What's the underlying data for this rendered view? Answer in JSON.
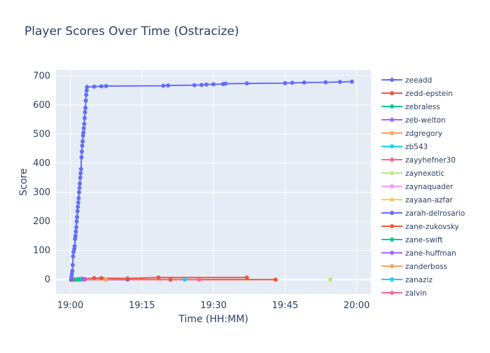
{
  "chart_data": {
    "type": "line",
    "title": "Player Scores Over Time (Ostracize)",
    "xlabel": "Time (HH:MM)",
    "ylabel": "Score",
    "x_ticks": [
      "19:00",
      "19:15",
      "19:30",
      "19:45",
      "20:00"
    ],
    "y_ticks": [
      0,
      100,
      200,
      300,
      400,
      500,
      600,
      700
    ],
    "xlim": [
      "19:00",
      "20:00"
    ],
    "ylim": [
      -50,
      720
    ],
    "grid": true,
    "legend_position": "right",
    "series": [
      {
        "name": "zeeadd",
        "color": "#636efa",
        "points": [
          [
            "19:00:10",
            0
          ],
          [
            "19:00:15",
            10
          ],
          [
            "19:00:20",
            20
          ],
          [
            "19:00:25",
            30
          ],
          [
            "19:00:30",
            50
          ],
          [
            "19:00:35",
            80
          ],
          [
            "19:00:40",
            95
          ],
          [
            "19:00:50",
            105
          ],
          [
            "19:00:55",
            115
          ],
          [
            "19:01:00",
            140
          ],
          [
            "19:01:05",
            150
          ],
          [
            "19:01:10",
            165
          ],
          [
            "19:01:15",
            180
          ],
          [
            "19:01:20",
            200
          ],
          [
            "19:01:25",
            215
          ],
          [
            "19:01:30",
            235
          ],
          [
            "19:01:35",
            250
          ],
          [
            "19:01:40",
            265
          ],
          [
            "19:01:45",
            280
          ],
          [
            "19:01:50",
            300
          ],
          [
            "19:01:55",
            315
          ],
          [
            "19:02:00",
            330
          ],
          [
            "19:02:05",
            350
          ],
          [
            "19:02:10",
            365
          ],
          [
            "19:02:15",
            380
          ],
          [
            "19:02:20",
            420
          ],
          [
            "19:02:25",
            440
          ],
          [
            "19:02:30",
            460
          ],
          [
            "19:02:35",
            475
          ],
          [
            "19:02:40",
            495
          ],
          [
            "19:02:45",
            505
          ],
          [
            "19:02:50",
            520
          ],
          [
            "19:02:55",
            535
          ],
          [
            "19:03:00",
            555
          ],
          [
            "19:03:05",
            575
          ],
          [
            "19:03:10",
            590
          ],
          [
            "19:03:15",
            615
          ],
          [
            "19:03:20",
            635
          ],
          [
            "19:03:25",
            650
          ],
          [
            "19:03:30",
            662
          ],
          [
            "19:05:00",
            663
          ],
          [
            "19:06:30",
            664
          ],
          [
            "19:07:30",
            665
          ],
          [
            "19:19:30",
            666
          ],
          [
            "19:20:30",
            667
          ],
          [
            "19:26:00",
            668
          ],
          [
            "19:27:30",
            669
          ],
          [
            "19:28:30",
            670
          ],
          [
            "19:30:00",
            671
          ],
          [
            "19:32:00",
            672
          ],
          [
            "19:32:30",
            673
          ],
          [
            "19:37:00",
            674
          ],
          [
            "19:45:00",
            675
          ],
          [
            "19:46:30",
            676
          ],
          [
            "19:49:00",
            677
          ],
          [
            "19:53:30",
            678
          ],
          [
            "19:56:30",
            679
          ],
          [
            "19:59:00",
            680
          ]
        ]
      },
      {
        "name": "zedd-epstein",
        "color": "#ef553b",
        "points": [
          [
            "19:00:30",
            0
          ],
          [
            "19:05:00",
            5
          ],
          [
            "19:06:30",
            5
          ],
          [
            "19:12:00",
            4
          ],
          [
            "19:18:30",
            7
          ],
          [
            "19:37:00",
            7
          ]
        ]
      },
      {
        "name": "zebraless",
        "color": "#00cc96",
        "points": [
          [
            "19:01:00",
            0
          ],
          [
            "19:01:30",
            1
          ],
          [
            "19:02:00",
            2
          ]
        ]
      },
      {
        "name": "zeb-welton",
        "color": "#ab63fa",
        "points": [
          [
            "19:02:30",
            3
          ],
          [
            "19:03:00",
            2
          ]
        ]
      },
      {
        "name": "zdgregory",
        "color": "#ffa15a",
        "points": [
          [
            "19:00:20",
            1
          ],
          [
            "19:07:30",
            0
          ]
        ]
      },
      {
        "name": "zb543",
        "color": "#19d3f3",
        "points": [
          [
            "19:24:00",
            0
          ]
        ]
      },
      {
        "name": "zayyhefner30",
        "color": "#ff6692",
        "points": [
          [
            "19:03:10",
            1
          ],
          [
            "19:27:00",
            0
          ]
        ]
      },
      {
        "name": "zaynexotic",
        "color": "#b6e880",
        "points": [
          [
            "19:54:30",
            0
          ]
        ]
      },
      {
        "name": "zaynaquader",
        "color": "#ff97ff",
        "points": [
          [
            "19:00:40",
            1
          ]
        ]
      },
      {
        "name": "zayaan-azfar",
        "color": "#fecb52",
        "points": [
          [
            "19:00:05",
            -2
          ]
        ]
      },
      {
        "name": "zarah-delrosario",
        "color": "#636efa",
        "points": [
          [
            "19:02:00",
            0
          ],
          [
            "19:12:00",
            0
          ]
        ]
      },
      {
        "name": "zane-zukovsky",
        "color": "#ef553b",
        "points": [
          [
            "19:00:50",
            0
          ],
          [
            "19:21:00",
            0
          ],
          [
            "19:43:00",
            0
          ]
        ]
      },
      {
        "name": "zane-swift",
        "color": "#00cc96",
        "points": [
          [
            "19:01:30",
            0
          ]
        ]
      },
      {
        "name": "zane-huffman",
        "color": "#ab63fa",
        "points": [
          [
            "19:02:40",
            0
          ]
        ]
      },
      {
        "name": "zanderboss",
        "color": "#ffa15a",
        "points": [
          [
            "19:00:25",
            0
          ]
        ]
      },
      {
        "name": "zanaziz",
        "color": "#19d3f3",
        "points": [
          [
            "19:01:10",
            0
          ]
        ]
      },
      {
        "name": "zalvin",
        "color": "#ff6692",
        "points": [
          [
            "19:00:35",
            0
          ]
        ]
      }
    ]
  }
}
